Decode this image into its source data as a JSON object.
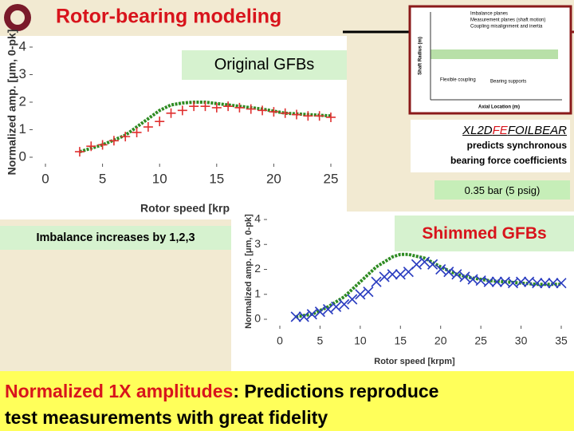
{
  "slide": {
    "title": "Rotor-bearing modeling",
    "label_original": "Original GFBs",
    "label_shimmed": "Shimmed GFBs",
    "label_imbalance": "Imbalance increases by 1,2,3",
    "code_pre": "XL2D",
    "code_fe": "FE",
    "code_post": "FOILBEAR",
    "code_line2": "predicts synchronous",
    "code_line3": "bearing force coefficients",
    "pressure": "0.35 bar (5 psig)",
    "bottom_highlight": "Normalized 1X amplitudes",
    "bottom_rest": ": Predictions reproduce",
    "bottom_line2": "test measurements with great fidelity",
    "inset": {
      "legend": [
        "Imbalance planes",
        "Measurement planes (shaft motion)",
        "Coupling misalignment and inertia"
      ],
      "ylabel": "Shaft Radius (m)",
      "xlabel": "Axial Location (m)",
      "note1": "Flexible coupling",
      "note2": "Bearing supports"
    }
  },
  "chart_data": [
    {
      "type": "line",
      "xlabel": "Rotor speed [krp",
      "ylabel": "Normalized amp. [μm, 0-pk]",
      "xlim": [
        0,
        25
      ],
      "ylim": [
        0,
        4
      ],
      "xticks": [
        0,
        5,
        10,
        15,
        20,
        25
      ],
      "yticks": [
        0,
        1,
        2,
        3,
        4
      ],
      "series": [
        {
          "color": "#2e8b22",
          "marker": "dots",
          "x": [
            3,
            5,
            7,
            9,
            10,
            11,
            12,
            13,
            14,
            15,
            17,
            19,
            21,
            23,
            25
          ],
          "values": [
            0.2,
            0.45,
            0.8,
            1.4,
            1.7,
            1.9,
            1.97,
            2.0,
            2.0,
            1.95,
            1.85,
            1.75,
            1.6,
            1.55,
            1.5
          ]
        },
        {
          "color": "#e03030",
          "marker": "plus",
          "x": [
            3,
            4,
            5,
            6,
            7,
            8,
            9,
            10,
            11,
            12,
            13,
            14,
            15,
            16,
            17,
            18,
            19,
            20,
            21,
            22,
            23,
            24,
            25
          ],
          "values": [
            0.2,
            0.4,
            0.45,
            0.6,
            0.75,
            0.9,
            1.1,
            1.3,
            1.6,
            1.7,
            1.85,
            1.85,
            1.8,
            1.85,
            1.8,
            1.75,
            1.7,
            1.65,
            1.6,
            1.55,
            1.5,
            1.5,
            1.45
          ]
        }
      ]
    },
    {
      "type": "line",
      "xlabel": "Rotor speed [krpm]",
      "ylabel": "Normalized amp. [μm, 0-pk]",
      "xlim": [
        0,
        35
      ],
      "ylim": [
        0,
        4
      ],
      "xticks": [
        0,
        5,
        10,
        15,
        20,
        25,
        30,
        35
      ],
      "yticks": [
        0,
        1,
        2,
        3,
        4
      ],
      "series": [
        {
          "color": "#2e8b22",
          "marker": "dots",
          "x": [
            2,
            4,
            6,
            8,
            10,
            12,
            14,
            15,
            16,
            18,
            20,
            22,
            24,
            26,
            28,
            30,
            32,
            35
          ],
          "values": [
            0.1,
            0.2,
            0.5,
            0.9,
            1.5,
            2.1,
            2.5,
            2.6,
            2.6,
            2.45,
            2.1,
            1.8,
            1.65,
            1.55,
            1.5,
            1.45,
            1.4,
            1.4
          ]
        },
        {
          "color": "#2a3cc0",
          "marker": "x",
          "x": [
            2,
            3,
            4,
            5,
            6,
            7,
            8,
            9,
            10,
            11,
            12,
            13,
            14,
            15,
            16,
            17,
            18,
            19,
            20,
            21,
            22,
            23,
            24,
            25,
            26,
            27,
            28,
            29,
            30,
            31,
            32,
            33,
            34,
            35
          ],
          "values": [
            0.1,
            0.1,
            0.2,
            0.3,
            0.4,
            0.5,
            0.6,
            0.8,
            1.0,
            1.1,
            1.5,
            1.7,
            1.8,
            1.8,
            1.9,
            2.2,
            2.3,
            2.2,
            2.0,
            1.9,
            1.8,
            1.7,
            1.6,
            1.55,
            1.5,
            1.5,
            1.5,
            1.45,
            1.5,
            1.5,
            1.45,
            1.45,
            1.45,
            1.45
          ]
        }
      ]
    }
  ]
}
